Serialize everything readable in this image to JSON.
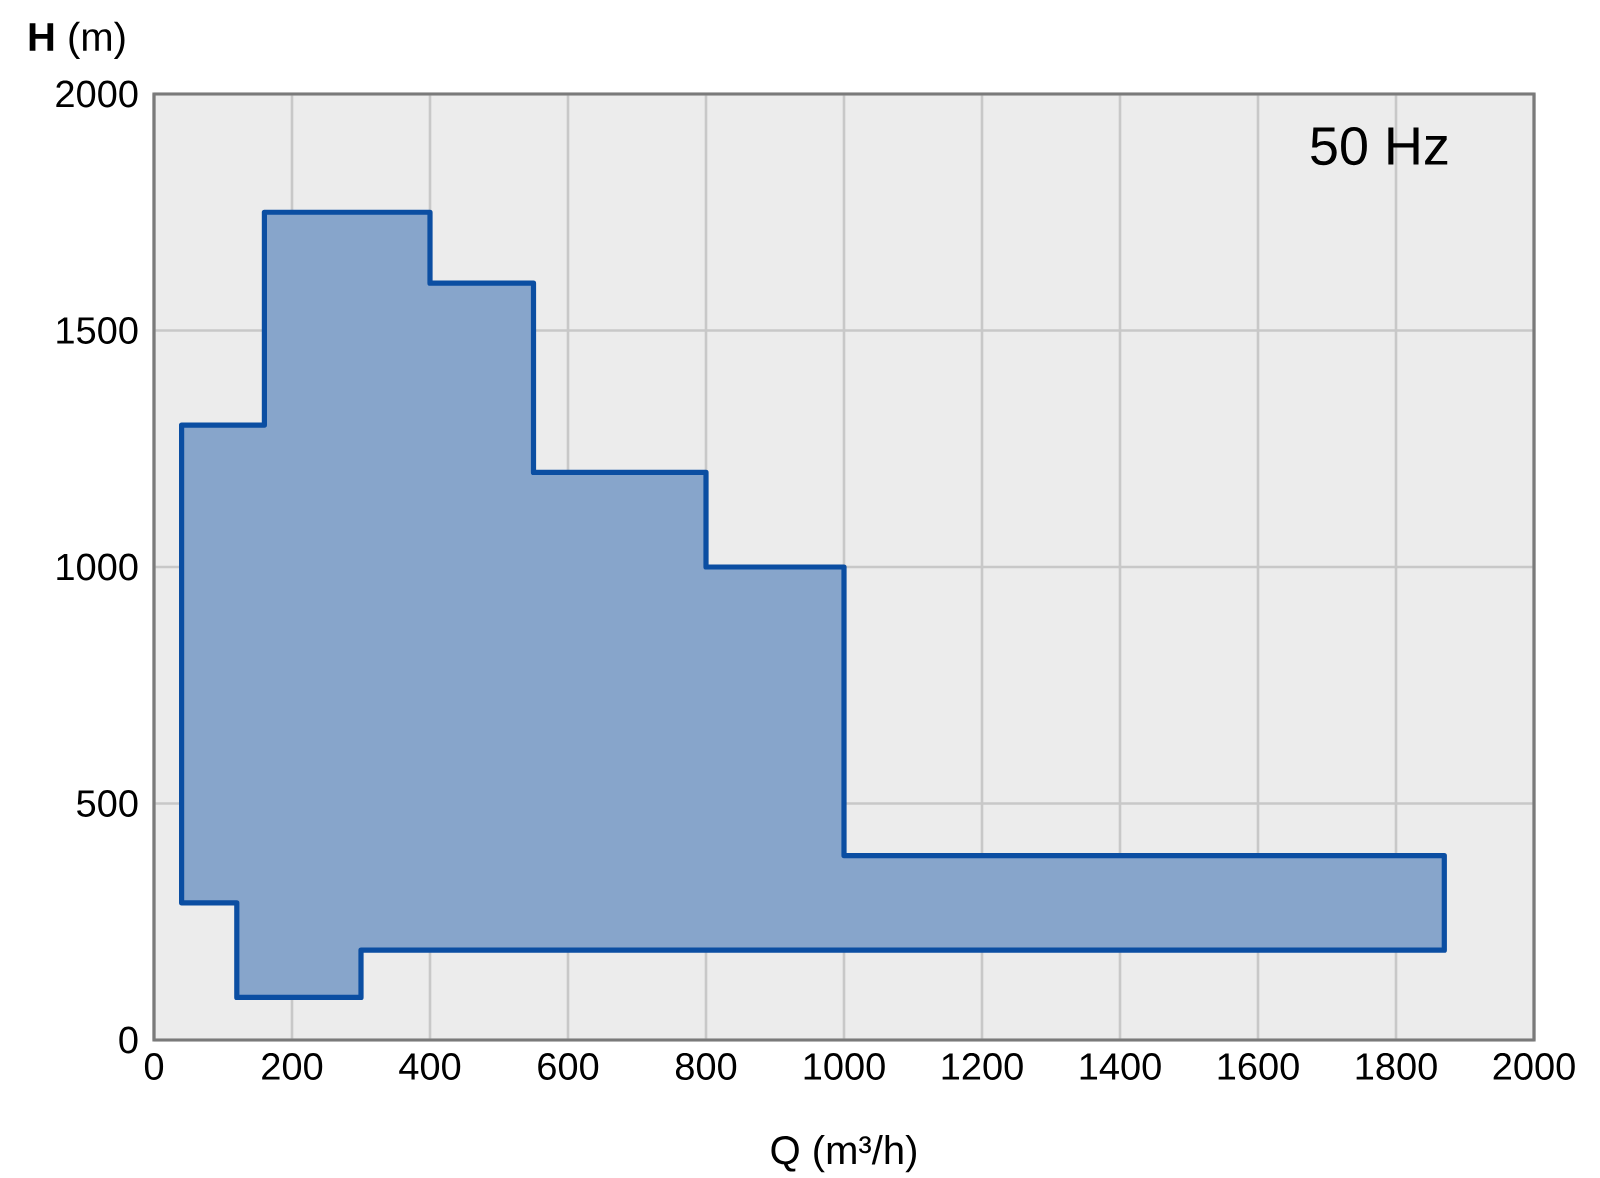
{
  "chart_data": {
    "type": "area",
    "xlabel": "Q (m³/h)",
    "ylabel": "**H** (m)",
    "annotations": [
      "50 Hz"
    ],
    "x": [
      40,
      40,
      160,
      160,
      400,
      400,
      550,
      550,
      800,
      800,
      1000,
      1000,
      1870,
      1870,
      300,
      300,
      120,
      120
    ],
    "values": [
      290,
      1300,
      1300,
      1750,
      1750,
      1600,
      1600,
      1200,
      1200,
      1000,
      1000,
      390,
      390,
      190,
      190,
      90,
      90,
      290
    ],
    "color": "#0b4ea2",
    "xlim": [
      0,
      2000
    ],
    "ylim": [
      0,
      2000
    ],
    "xticks": [
      0,
      200,
      400,
      600,
      800,
      1000,
      1200,
      1400,
      1600,
      1800,
      2000
    ],
    "yticks": [
      0,
      500,
      1000,
      1500,
      2000
    ],
    "grid": true
  }
}
